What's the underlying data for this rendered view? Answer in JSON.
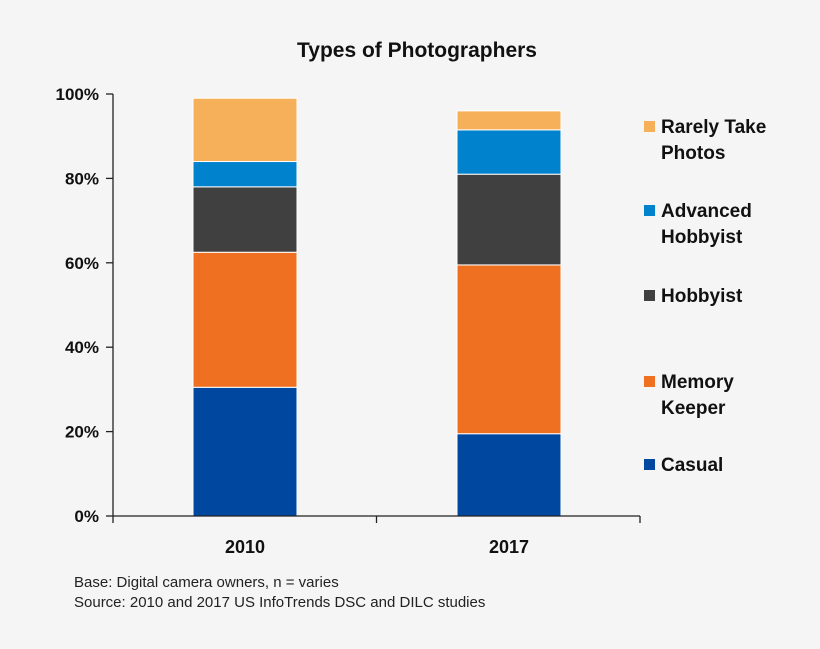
{
  "chart_data": {
    "type": "bar",
    "stacked": true,
    "title": "Types of Photographers",
    "categories": [
      "2010",
      "2017"
    ],
    "ylim": [
      0,
      100
    ],
    "yticks": [
      "0%",
      "20%",
      "40%",
      "60%",
      "80%",
      "100%"
    ],
    "series": [
      {
        "name": "Casual",
        "color": "#0047a0",
        "values": [
          30.5,
          19.5
        ]
      },
      {
        "name": "Memory Keeper",
        "color": "#f07022",
        "values": [
          32,
          40
        ]
      },
      {
        "name": "Hobbyist",
        "color": "#404040",
        "values": [
          15.5,
          21.5
        ]
      },
      {
        "name": "Advanced Hobbyist",
        "color": "#0083cc",
        "values": [
          6,
          10.5
        ]
      },
      {
        "name": "Rarely Take Photos",
        "color": "#f7b05a",
        "values": [
          15,
          4.5
        ]
      }
    ],
    "legend": [
      {
        "lines": [
          "Rarely Take",
          "Photos"
        ],
        "color": "#f7b05a"
      },
      {
        "lines": [
          "Advanced",
          "Hobbyist"
        ],
        "color": "#0083cc"
      },
      {
        "lines": [
          "Hobbyist"
        ],
        "color": "#404040"
      },
      {
        "lines": [
          "Memory",
          "Keeper"
        ],
        "color": "#f07022"
      },
      {
        "lines": [
          "Casual"
        ],
        "color": "#0047a0"
      }
    ],
    "legend_position": "right",
    "grid": false
  },
  "footnote": {
    "base": "Base: Digital camera owners, n = varies",
    "source": "Source: 2010 and 2017 US InfoTrends DSC and DILC studies"
  }
}
